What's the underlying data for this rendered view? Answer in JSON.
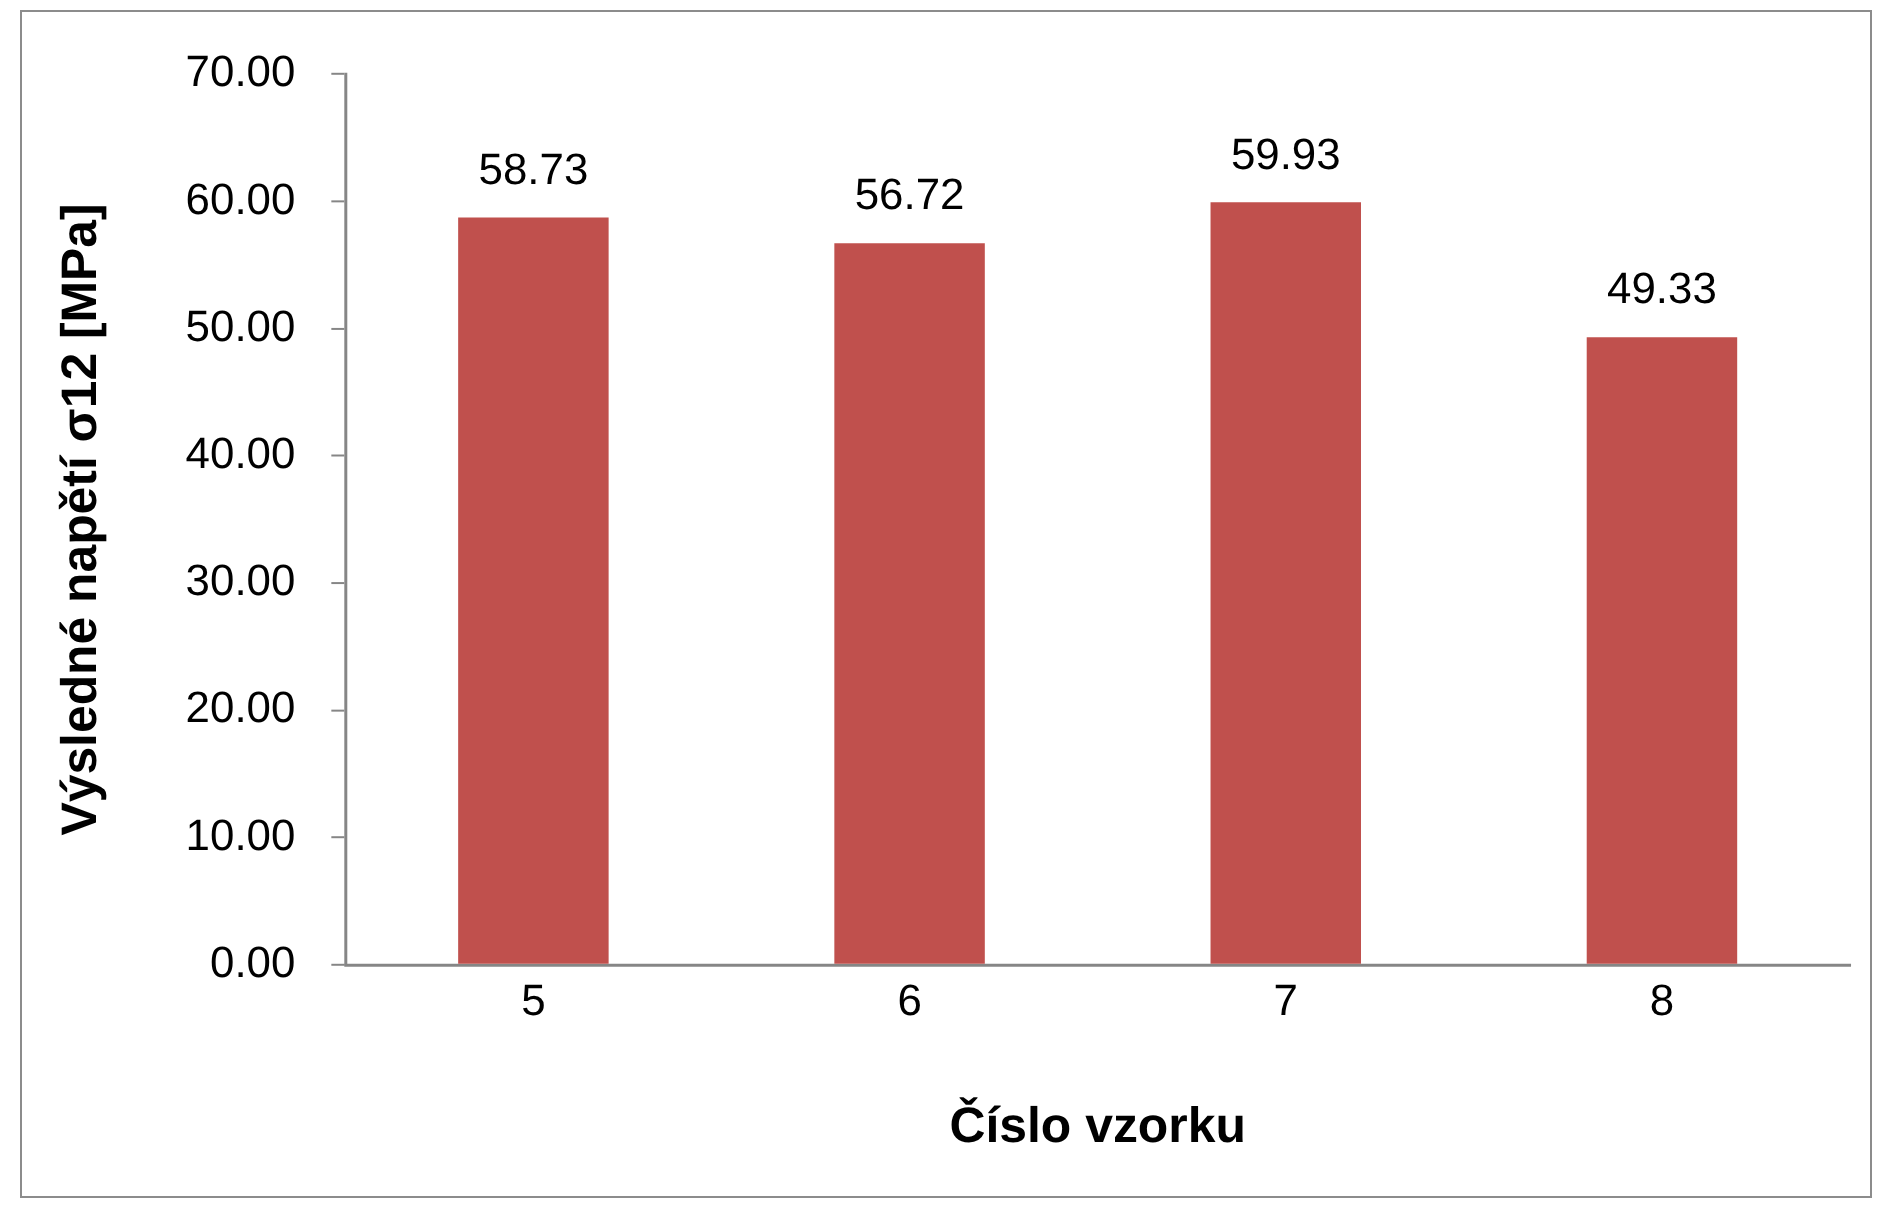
{
  "chart_data": {
    "type": "bar",
    "xlabel": "Číslo vzorku",
    "ylabel": "Výsledné napětí σ12 [MPa]",
    "categories": [
      "5",
      "6",
      "7",
      "8"
    ],
    "values": [
      58.73,
      56.72,
      59.93,
      49.33
    ],
    "color": "#c0504d",
    "ylim": [
      0,
      70
    ],
    "yticks": [
      {
        "value": 0,
        "label": "0.00"
      },
      {
        "value": 10,
        "label": "10.00"
      },
      {
        "value": 20,
        "label": "20.00"
      },
      {
        "value": 30,
        "label": "30.00"
      },
      {
        "value": 40,
        "label": "40.00"
      },
      {
        "value": 50,
        "label": "50.00"
      },
      {
        "value": 60,
        "label": "60.00"
      },
      {
        "value": 70,
        "label": "70.00"
      }
    ],
    "data_labels": true
  }
}
